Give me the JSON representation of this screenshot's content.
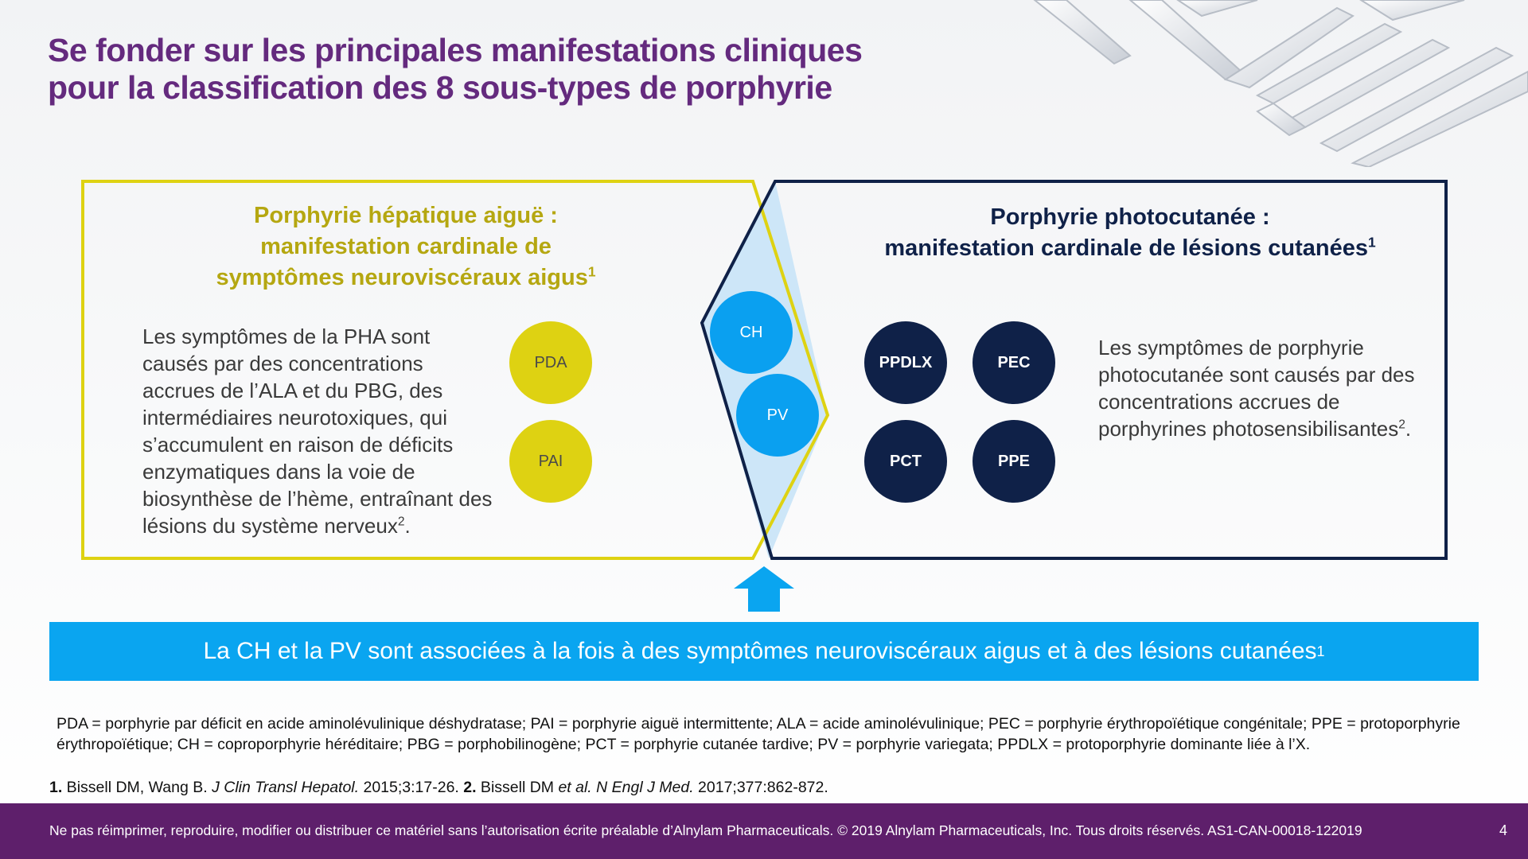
{
  "title": {
    "line1": "Se fonder sur les principales manifestations cliniques",
    "line2": "pour la classification des 8 sous-types de porphyrie"
  },
  "left_panel": {
    "heading_line1": "Porphyrie hépatique aiguë :",
    "heading_line2": "manifestation cardinale de",
    "heading_line3": "symptômes neuroviscéraux aigus",
    "heading_sup": "1",
    "body": "Les symptômes de la PHA sont causés par des concentrations accrues de l’ALA et du PBG, des intermédiaires neurotoxiques, qui s’accumulent en raison de déficits enzymatiques dans la voie de biosynthèse de l’hème, entraînant des lésions du système nerveux",
    "body_sup": "2",
    "body_end": ".",
    "circles": [
      "PDA",
      "PAI"
    ],
    "color": "#ded212"
  },
  "overlap": {
    "circles": [
      "CH",
      "PV"
    ],
    "color": "#0aa0f0"
  },
  "right_panel": {
    "heading_line1": "Porphyrie photocutanée :",
    "heading_line2": "manifestation cardinale de lésions cutanées",
    "heading_sup": "1",
    "circles": [
      "PPDLX",
      "PEC",
      "PCT",
      "PPE"
    ],
    "body": "Les symptômes de porphyrie photocutanée sont causés par des concentrations accrues de porphyrines photosensibilisantes",
    "body_sup": "2",
    "body_end": ".",
    "color": "#0f2148"
  },
  "banner": {
    "text": "La CH et la PV sont associées à la fois à des symptômes neuroviscéraux aigus et à des lésions cutanées",
    "sup": "1"
  },
  "footnote": "PDA = porphyrie par déficit en acide aminolévulinique déshydratase; PAI = porphyrie aiguë intermittente; ALA = acide aminolévulinique; PEC = porphyrie érythropoïétique congénitale; PPE = protoporphyrie érythropoïétique; CH = coproporphyrie héréditaire; PBG = porphobilinogène; PCT = porphyrie cutanée tardive; PV = porphyrie variegata; PPDLX = protoporphyrie dominante liée à l’X.",
  "references": {
    "ref1_num": "1.",
    "ref1_authors": " Bissell DM, Wang B. ",
    "ref1_journal": "J Clin Transl Hepatol.",
    "ref1_rest": " 2015;3:17-26. ",
    "ref2_num": "2.",
    "ref2_authors": " Bissell DM ",
    "ref2_etal": "et al.",
    "ref2_journal": " N Engl J Med.",
    "ref2_rest": " 2017;377:862-872."
  },
  "footer": {
    "text": "Ne pas réimprimer, reproduire, modifier ou distribuer ce matériel sans l’autorisation écrite préalable d’Alnylam Pharmaceuticals. © 2019 Alnylam Pharmaceuticals, Inc. Tous droits réservés. AS1-CAN-00018-122019",
    "page_number": "4"
  }
}
